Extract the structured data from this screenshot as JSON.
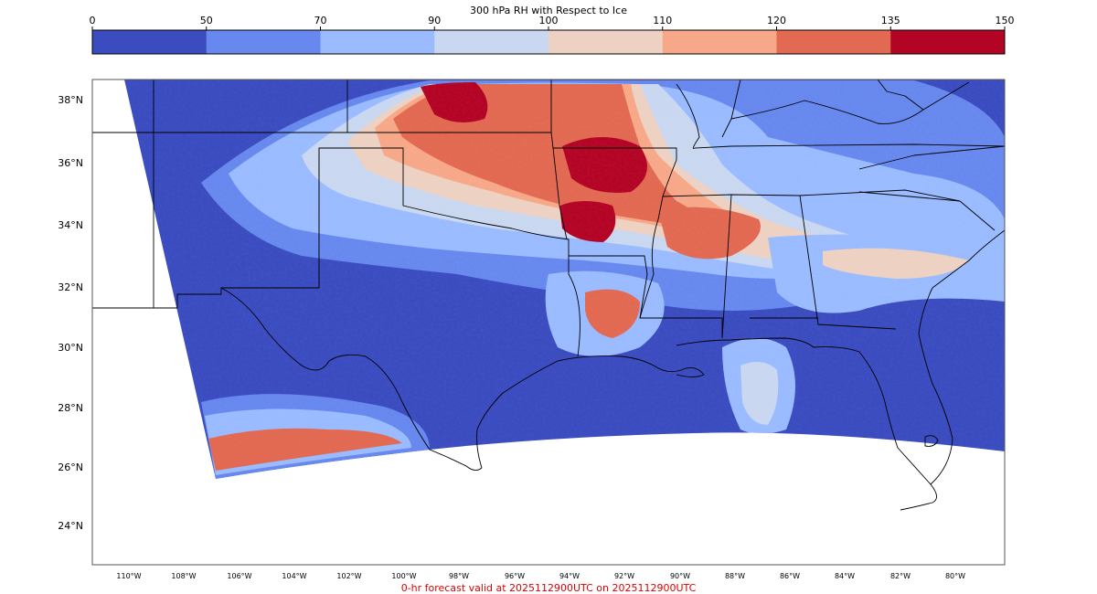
{
  "colorbar": {
    "title": "300 hPa RH with Respect to Ice",
    "ticks": [
      "0",
      "50",
      "70",
      "90",
      "100",
      "110",
      "120",
      "135",
      "150"
    ],
    "colors": [
      "#3b4cc0",
      "#6788ee",
      "#9abbff",
      "#c9d7f0",
      "#edd1c2",
      "#f7a889",
      "#e26952",
      "#b40426"
    ]
  },
  "map": {
    "lat_labels": [
      "38°N",
      "36°N",
      "34°N",
      "32°N",
      "30°N",
      "28°N",
      "26°N",
      "24°N"
    ],
    "lon_labels": [
      "110°W",
      "108°W",
      "106°W",
      "104°W",
      "102°W",
      "100°W",
      "98°W",
      "96°W",
      "94°W",
      "92°W",
      "90°W",
      "88°W",
      "86°W",
      "84°W",
      "82°W",
      "80°W"
    ]
  },
  "caption": "0-hr forecast valid at 2025112900UTC on 2025112900UTC"
}
